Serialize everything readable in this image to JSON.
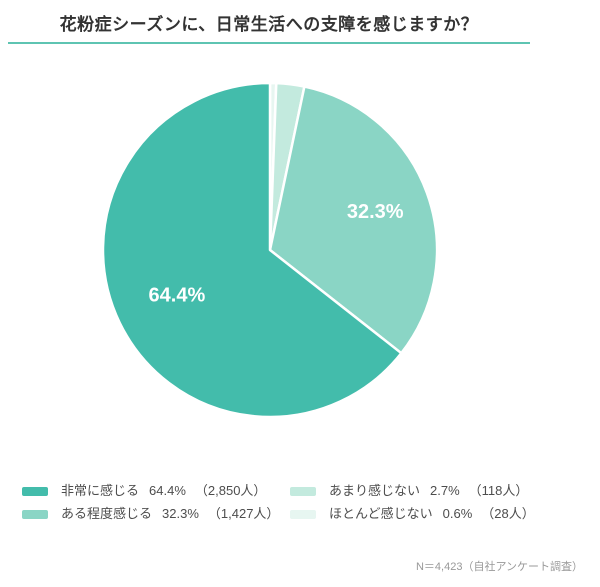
{
  "header": {
    "title": "花粉症シーズンに、日常生活への支障を感じますか？",
    "underline_color": "#5EC4B2"
  },
  "footnote": {
    "text": "N＝4,423（自社アンケート調査）"
  },
  "chart_data": {
    "type": "pie",
    "title": "花粉症シーズンに、日常生活への支障を感じますか？",
    "total_label": "N＝4,423",
    "start_angle": "12-oclock",
    "direction": "clockwise-smallest-first (equivalent to counterclockwise in legend order)",
    "unit": "%",
    "legend_position": "bottom, two columns",
    "categories": [
      "非常に感じる",
      "ある程度感じる",
      "あまり感じない",
      "ほとんど感じない"
    ],
    "values": [
      64.4,
      32.3,
      2.7,
      0.6
    ],
    "counts": [
      2850,
      1427,
      118,
      28
    ],
    "slices": [
      {
        "id": "very-much",
        "label": "非常に感じる",
        "value": 64.4,
        "pct_text": "64.4%",
        "count_text": "（2,850人）",
        "color": "#43BCAB",
        "show_label": true,
        "label_r": 0.62
      },
      {
        "id": "somewhat",
        "label": "ある程度感じる",
        "value": 32.3,
        "pct_text": "32.3%",
        "count_text": "（1,427人）",
        "color": "#8AD5C5",
        "show_label": true,
        "label_r": 0.67
      },
      {
        "id": "not-much",
        "label": "あまり感じない",
        "value": 2.7,
        "pct_text": "2.7%",
        "count_text": "（118人）",
        "color": "#C3EADE",
        "show_label": false,
        "label_r": 0
      },
      {
        "id": "hardly",
        "label": "ほとんど感じない",
        "value": 0.6,
        "pct_text": "0.6%",
        "count_text": "（28人）",
        "color": "#E7F6F1",
        "show_label": false,
        "label_r": 0
      }
    ]
  }
}
